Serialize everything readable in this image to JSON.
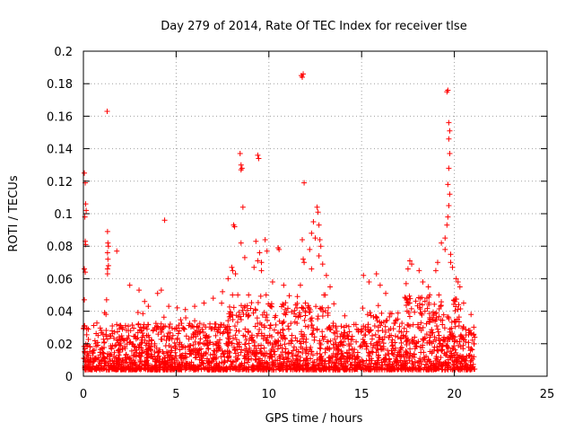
{
  "chart_data": {
    "type": "scatter",
    "title": "Day 279 of 2014, Rate Of TEC Index for receiver tlse",
    "xlabel": "GPS time / hours",
    "ylabel": "ROTI / TECUs",
    "xlim": [
      0,
      25
    ],
    "ylim": [
      0,
      0.2
    ],
    "x_ticks": [
      0,
      5,
      10,
      15,
      20,
      25
    ],
    "x_tick_labels": [
      "0",
      "5",
      "10",
      "15",
      "20",
      "25"
    ],
    "y_ticks": [
      0,
      0.02,
      0.04,
      0.06,
      0.08,
      0.1,
      0.12,
      0.14,
      0.16,
      0.18,
      0.2
    ],
    "y_tick_labels": [
      "0",
      "0.02",
      "0.04",
      "0.06",
      "0.08",
      "0.1",
      "0.12",
      "0.14",
      "0.16",
      "0.18",
      "0.2"
    ],
    "grid": true,
    "marker": "+",
    "color": "#ff0000",
    "series": [
      {
        "name": "ROTI",
        "points": [
          [
            0.05,
            0.125
          ],
          [
            0.1,
            0.119
          ],
          [
            0.12,
            0.106
          ],
          [
            0.15,
            0.102
          ],
          [
            0.08,
            0.098
          ],
          [
            0.1,
            0.083
          ],
          [
            0.12,
            0.081
          ],
          [
            0.05,
            0.066
          ],
          [
            0.1,
            0.064
          ],
          [
            0.05,
            0.047
          ],
          [
            1.28,
            0.163
          ],
          [
            1.3,
            0.089
          ],
          [
            1.32,
            0.082
          ],
          [
            1.35,
            0.08
          ],
          [
            1.3,
            0.076
          ],
          [
            1.32,
            0.072
          ],
          [
            1.35,
            0.068
          ],
          [
            1.3,
            0.066
          ],
          [
            1.3,
            0.063
          ],
          [
            1.25,
            0.047
          ],
          [
            1.8,
            0.077
          ],
          [
            4.38,
            0.096
          ],
          [
            2.5,
            0.056
          ],
          [
            3.0,
            0.053
          ],
          [
            3.3,
            0.046
          ],
          [
            3.5,
            0.043
          ],
          [
            4.0,
            0.051
          ],
          [
            4.2,
            0.053
          ],
          [
            4.6,
            0.043
          ],
          [
            6.0,
            0.043
          ],
          [
            6.5,
            0.045
          ],
          [
            5.5,
            0.041
          ],
          [
            7.0,
            0.048
          ],
          [
            7.5,
            0.052
          ],
          [
            7.8,
            0.06
          ],
          [
            8.1,
            0.093
          ],
          [
            8.15,
            0.092
          ],
          [
            8.0,
            0.067
          ],
          [
            8.05,
            0.065
          ],
          [
            8.2,
            0.063
          ],
          [
            8.45,
            0.137
          ],
          [
            8.5,
            0.13
          ],
          [
            8.5,
            0.127
          ],
          [
            8.55,
            0.128
          ],
          [
            8.6,
            0.104
          ],
          [
            8.5,
            0.082
          ],
          [
            8.7,
            0.073
          ],
          [
            9.4,
            0.136
          ],
          [
            9.45,
            0.134
          ],
          [
            9.3,
            0.083
          ],
          [
            9.5,
            0.076
          ],
          [
            9.4,
            0.071
          ],
          [
            9.6,
            0.07
          ],
          [
            9.8,
            0.084
          ],
          [
            9.9,
            0.077
          ],
          [
            9.2,
            0.067
          ],
          [
            9.6,
            0.065
          ],
          [
            10.5,
            0.079
          ],
          [
            10.55,
            0.078
          ],
          [
            10.2,
            0.058
          ],
          [
            10.8,
            0.056
          ],
          [
            11.75,
            0.185
          ],
          [
            11.8,
            0.184
          ],
          [
            11.85,
            0.186
          ],
          [
            11.9,
            0.119
          ],
          [
            11.8,
            0.084
          ],
          [
            11.85,
            0.072
          ],
          [
            11.9,
            0.07
          ],
          [
            11.7,
            0.056
          ],
          [
            12.2,
            0.078
          ],
          [
            12.3,
            0.088
          ],
          [
            12.4,
            0.095
          ],
          [
            12.6,
            0.104
          ],
          [
            12.65,
            0.101
          ],
          [
            12.7,
            0.093
          ],
          [
            12.5,
            0.085
          ],
          [
            12.75,
            0.084
          ],
          [
            12.8,
            0.08
          ],
          [
            12.7,
            0.074
          ],
          [
            12.3,
            0.066
          ],
          [
            12.9,
            0.069
          ],
          [
            13.1,
            0.062
          ],
          [
            13.3,
            0.055
          ],
          [
            15.1,
            0.062
          ],
          [
            15.4,
            0.058
          ],
          [
            15.8,
            0.063
          ],
          [
            16.0,
            0.056
          ],
          [
            16.3,
            0.051
          ],
          [
            17.4,
            0.057
          ],
          [
            17.6,
            0.071
          ],
          [
            17.7,
            0.069
          ],
          [
            17.5,
            0.066
          ],
          [
            18.1,
            0.065
          ],
          [
            18.3,
            0.058
          ],
          [
            18.6,
            0.055
          ],
          [
            19.0,
            0.065
          ],
          [
            19.1,
            0.07
          ],
          [
            19.3,
            0.082
          ],
          [
            19.5,
            0.085
          ],
          [
            19.6,
            0.093
          ],
          [
            19.65,
            0.098
          ],
          [
            19.7,
            0.105
          ],
          [
            19.75,
            0.112
          ],
          [
            19.65,
            0.118
          ],
          [
            19.7,
            0.128
          ],
          [
            19.75,
            0.137
          ],
          [
            19.7,
            0.146
          ],
          [
            19.75,
            0.151
          ],
          [
            19.7,
            0.156
          ],
          [
            19.6,
            0.175
          ],
          [
            19.65,
            0.176
          ],
          [
            19.5,
            0.078
          ],
          [
            19.8,
            0.075
          ],
          [
            19.8,
            0.07
          ],
          [
            19.9,
            0.067
          ],
          [
            20.1,
            0.06
          ],
          [
            20.2,
            0.058
          ],
          [
            20.3,
            0.055
          ],
          [
            20.5,
            0.045
          ],
          [
            20.9,
            0.038
          ]
        ]
      }
    ]
  }
}
